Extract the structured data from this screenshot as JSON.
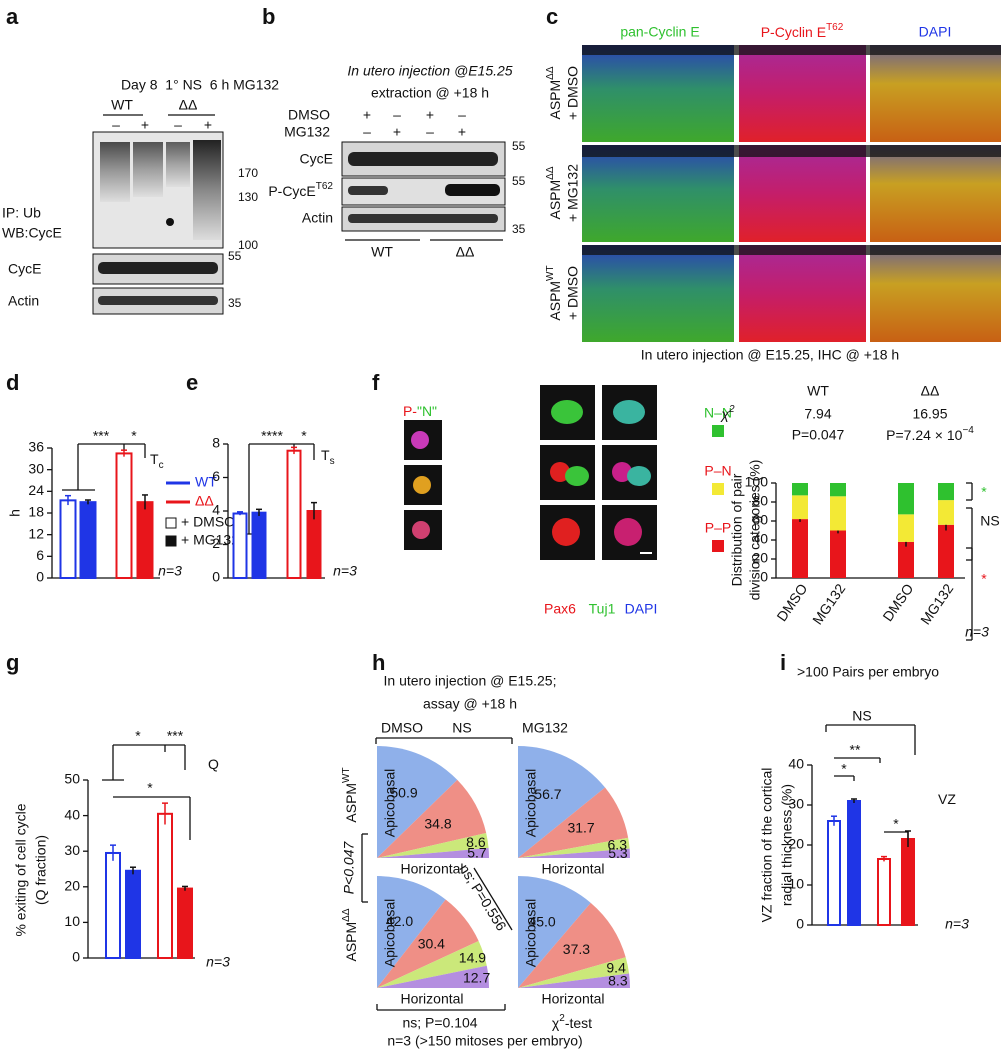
{
  "panels": {
    "a": {
      "letter": "a",
      "header": "Day 8  1° NS  6 h MG132",
      "groups": [
        "WT",
        "ΔΔ"
      ],
      "lanes": [
        "–",
        "+",
        "–",
        "+"
      ],
      "ip": "IP: Ub",
      "wb": "WB:CycE",
      "markers": [
        "170",
        "130",
        "100"
      ],
      "rows": [
        "CycE",
        "Actin"
      ],
      "row_markers": [
        "55",
        "35"
      ]
    },
    "b": {
      "letter": "b",
      "title": [
        "In utero injection @E15.25",
        "extraction @ +18 h"
      ],
      "treatments": [
        "DMSO",
        "MG132"
      ],
      "dmso_lanes": [
        "+",
        "–",
        "+",
        "–"
      ],
      "mg132_lanes": [
        "–",
        "+",
        "–",
        "+"
      ],
      "rows": [
        "CycE",
        "P-CycE",
        "Actin"
      ],
      "row_sup": "T62",
      "markers": [
        "55",
        "55",
        "35"
      ],
      "groups": [
        "WT",
        "ΔΔ"
      ]
    },
    "c": {
      "letter": "c",
      "columns": [
        "pan-Cyclin E",
        "P-Cyclin E",
        "DAPI"
      ],
      "column_sup": "T62",
      "rows": [
        {
          "name": "ASPM",
          "sup": "ΔΔ",
          "treat": "+ DMSO"
        },
        {
          "name": "ASPM",
          "sup": "ΔΔ",
          "treat": "+ MG132"
        },
        {
          "name": "ASPM",
          "sup": "WT",
          "treat": "+ DMSO"
        }
      ],
      "caption": "In utero injection @ E15.25, IHC @ +18 h"
    },
    "f_images": {
      "key_p": "P-",
      "key_n": "\"N\"",
      "stains": [
        "Pax6",
        "Tuj1",
        "DAPI"
      ]
    }
  },
  "chart_data": [
    {
      "letter": "d",
      "type": "bar",
      "ylabel": "h",
      "values": [
        21.5,
        21,
        34.5,
        21
      ],
      "errors": [
        1.3,
        0.6,
        0.9,
        2
      ],
      "colors": [
        "#1f35e6",
        "#1f35e6",
        "#e8151b",
        "#e8151b"
      ],
      "hollow": [
        true,
        false,
        true,
        false
      ],
      "ylim": [
        0,
        36
      ],
      "yticks": [
        0,
        6,
        12,
        18,
        24,
        30,
        36
      ],
      "annotations": [
        "***",
        "*"
      ],
      "label": "T",
      "label_sub": "c",
      "n": "n=3",
      "legend": {
        "lines": [
          {
            "name": "WT",
            "color": "#1f35e6"
          },
          {
            "name": "ΔΔ",
            "color": "#e8151b"
          }
        ],
        "boxes": [
          {
            "name": "+ DMSO",
            "hollow": true
          },
          {
            "name": "+ MG132",
            "hollow": false
          }
        ]
      }
    },
    {
      "letter": "e",
      "type": "bar",
      "values": [
        3.85,
        3.9,
        7.6,
        4.0
      ],
      "errors": [
        0.1,
        0.2,
        0.2,
        0.5
      ],
      "colors": [
        "#1f35e6",
        "#1f35e6",
        "#e8151b",
        "#e8151b"
      ],
      "hollow": [
        true,
        false,
        true,
        false
      ],
      "ylim": [
        0,
        8
      ],
      "yticks": [
        0,
        2,
        4,
        6,
        8
      ],
      "annotations": [
        "****",
        "*"
      ],
      "label": "T",
      "label_sub": "s",
      "n": "n=3"
    },
    {
      "letter": "f",
      "type": "stacked-bar",
      "categories": [
        "DMSO",
        "MG132",
        "DMSO",
        "MG132"
      ],
      "groups": [
        "WT",
        "ΔΔ"
      ],
      "stat_label": "χ",
      "stat_sup": "2",
      "stats": [
        "7.94",
        "16.95"
      ],
      "p_values": [
        "P=0.047",
        "P=7.24 × 10"
      ],
      "p_sup": "−4",
      "ylabel": [
        "Distribution of pair",
        "division categories (%)"
      ],
      "series": [
        {
          "name": "P–P",
          "color": "#e8151b",
          "values": [
            62,
            50,
            38,
            56
          ],
          "errors": [
            3,
            3,
            5,
            6
          ]
        },
        {
          "name": "P–N",
          "color": "#f3e935",
          "values": [
            25,
            36,
            29,
            26
          ]
        },
        {
          "name": "N–N",
          "color": "#2fc12f",
          "values": [
            13,
            14,
            33,
            18
          ]
        }
      ],
      "legend_text_colors": [
        "#e8151b",
        "#e8151b",
        "#2fc12f"
      ],
      "ylim": [
        0,
        100
      ],
      "yticks": [
        0,
        20,
        40,
        60,
        80,
        100
      ],
      "annotations": [
        "*",
        "NS",
        "*"
      ],
      "annotation_colors": [
        "#2fc12f",
        "#111111",
        "#e8151b"
      ],
      "n": "n=3",
      "footnote": ">100 Pairs per embryo"
    },
    {
      "letter": "g",
      "type": "bar",
      "ylabel": [
        "% exiting of cell cycle",
        "(Q fraction)"
      ],
      "values": [
        29.5,
        24.5,
        40.5,
        19.5
      ],
      "errors": [
        2.2,
        1,
        3,
        0.6
      ],
      "colors": [
        "#1f35e6",
        "#1f35e6",
        "#e8151b",
        "#e8151b"
      ],
      "hollow": [
        true,
        false,
        true,
        false
      ],
      "ylim": [
        0,
        50
      ],
      "yticks": [
        0,
        10,
        20,
        30,
        40,
        50
      ],
      "annotations": [
        "*",
        "***",
        "*"
      ],
      "label": "Q",
      "n": "n=3"
    },
    {
      "letter": "h",
      "type": "pie",
      "title": [
        "In utero injection @ E15.25;",
        "assay @ +18 h"
      ],
      "columns": [
        "DMSO",
        "MG132"
      ],
      "column_stat": "NS",
      "rows": [
        {
          "name": "ASPM",
          "sup": "WT"
        },
        {
          "name": "ASPM",
          "sup": "ΔΔ"
        }
      ],
      "axis_labels": [
        "Apicobasal",
        "Horizontal"
      ],
      "colors": [
        "#8fb0ea",
        "#ef8f86",
        "#cbe87a",
        "#b48ee0"
      ],
      "pies": [
        {
          "values": [
            50.9,
            34.8,
            8.6,
            5.7
          ]
        },
        {
          "values": [
            56.7,
            31.7,
            6.3,
            5.3
          ]
        },
        {
          "values": [
            42,
            30.4,
            14.9,
            12.7
          ],
          "value_labels": [
            "42.0",
            "30.4",
            "14.9",
            "12.7"
          ]
        },
        {
          "values": [
            45,
            37.3,
            9.4,
            8.3
          ],
          "value_labels": [
            "45.0",
            "37.3",
            "9.4",
            "8.3"
          ]
        }
      ],
      "stats": [
        "P<0.047",
        "ns; P=0.556",
        "ns; P=0.104"
      ],
      "test": "χ",
      "test_sup": "2",
      "test_rest": "-test",
      "footnote": "n=3 (>150 mitoses per embryo)"
    },
    {
      "letter": "i",
      "type": "bar",
      "ylabel": [
        "VZ fraction of the cortical",
        "radial thickness (%)"
      ],
      "values": [
        26,
        31,
        16.5,
        21.5
      ],
      "errors": [
        1.2,
        0.5,
        0.6,
        2
      ],
      "colors": [
        "#1f35e6",
        "#1f35e6",
        "#e8151b",
        "#e8151b"
      ],
      "hollow": [
        true,
        false,
        true,
        false
      ],
      "ylim": [
        0,
        40
      ],
      "yticks": [
        0,
        10,
        20,
        30,
        40
      ],
      "annotations": [
        "NS",
        "**",
        "*",
        "*"
      ],
      "label": "VZ",
      "n": "n=3"
    }
  ]
}
